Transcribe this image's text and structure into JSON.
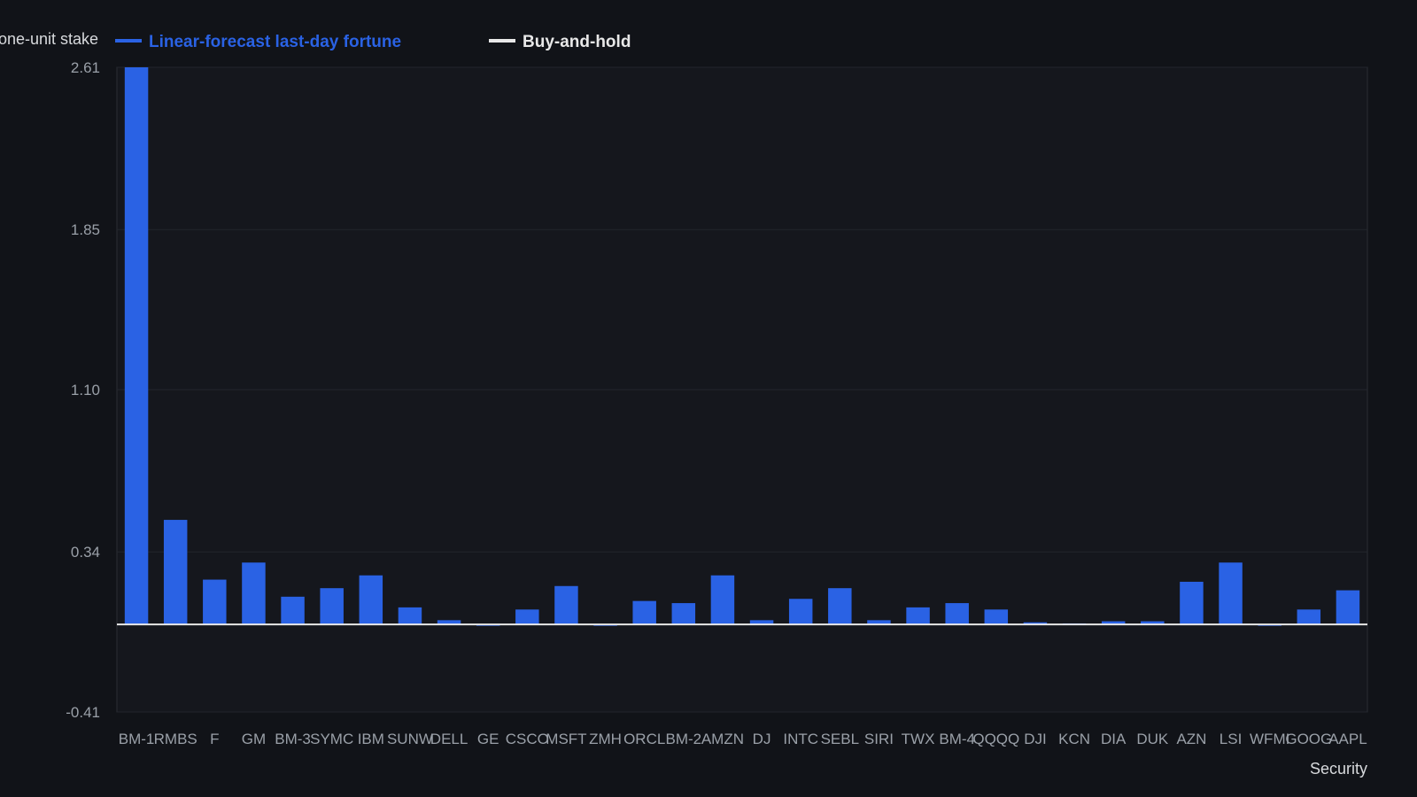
{
  "chart_data": {
    "type": "bar",
    "title": "",
    "ylabel": "one-unit stake",
    "xlabel": "Security",
    "ylim": [
      -0.41,
      2.61
    ],
    "yticks": [
      "2.61",
      "1.85",
      "1.10",
      "0.34",
      "-0.41"
    ],
    "ytick_values": [
      2.61,
      1.85,
      1.1,
      0.34,
      -0.41
    ],
    "grid": true,
    "legend_position": "top",
    "categories": [
      "BM-1",
      "RMBS",
      "F",
      "GM",
      "BM-3",
      "SYMC",
      "IBM",
      "SUNW",
      "DELL",
      "GE",
      "CSCO",
      "MSFT",
      "ZMH",
      "ORCL",
      "BM-2",
      "AMZN",
      "DJ",
      "INTC",
      "SEBL",
      "SIRI",
      "TWX",
      "BM-4",
      "QQQQ",
      "DJI",
      "KCN",
      "DIA",
      "DUK",
      "AZN",
      "LSI",
      "WFMI",
      "GOOG",
      "AAPL"
    ],
    "series": [
      {
        "name": "Linear-forecast last-day fortune",
        "color": "#2a62e4",
        "values": [
          2.61,
          0.49,
          0.21,
          0.29,
          0.13,
          0.17,
          0.23,
          0.08,
          0.02,
          -0.005,
          0.07,
          0.18,
          -0.005,
          0.11,
          0.1,
          0.23,
          0.02,
          0.12,
          0.17,
          0.02,
          0.08,
          0.1,
          0.07,
          0.01,
          0.005,
          0.015,
          0.015,
          0.2,
          0.29,
          -0.005,
          0.07,
          0.16
        ]
      },
      {
        "name": "Buy-and-hold",
        "color": "#e8e8e8",
        "values": [
          0,
          0,
          0,
          0,
          0,
          0,
          0,
          0,
          0,
          0,
          0,
          0,
          0,
          0,
          0,
          0,
          0,
          0,
          0,
          0,
          0,
          0,
          0,
          0,
          0,
          0,
          0,
          0,
          0,
          0,
          0,
          0
        ]
      }
    ]
  },
  "colors": {
    "background": "#111318",
    "plot_background": "#15171d",
    "grid": "#23262d",
    "axis_frame": "#2a2d34",
    "text": "#9aa0a8",
    "bar": "#2a62e4",
    "baseline": "#e8e8e8"
  }
}
